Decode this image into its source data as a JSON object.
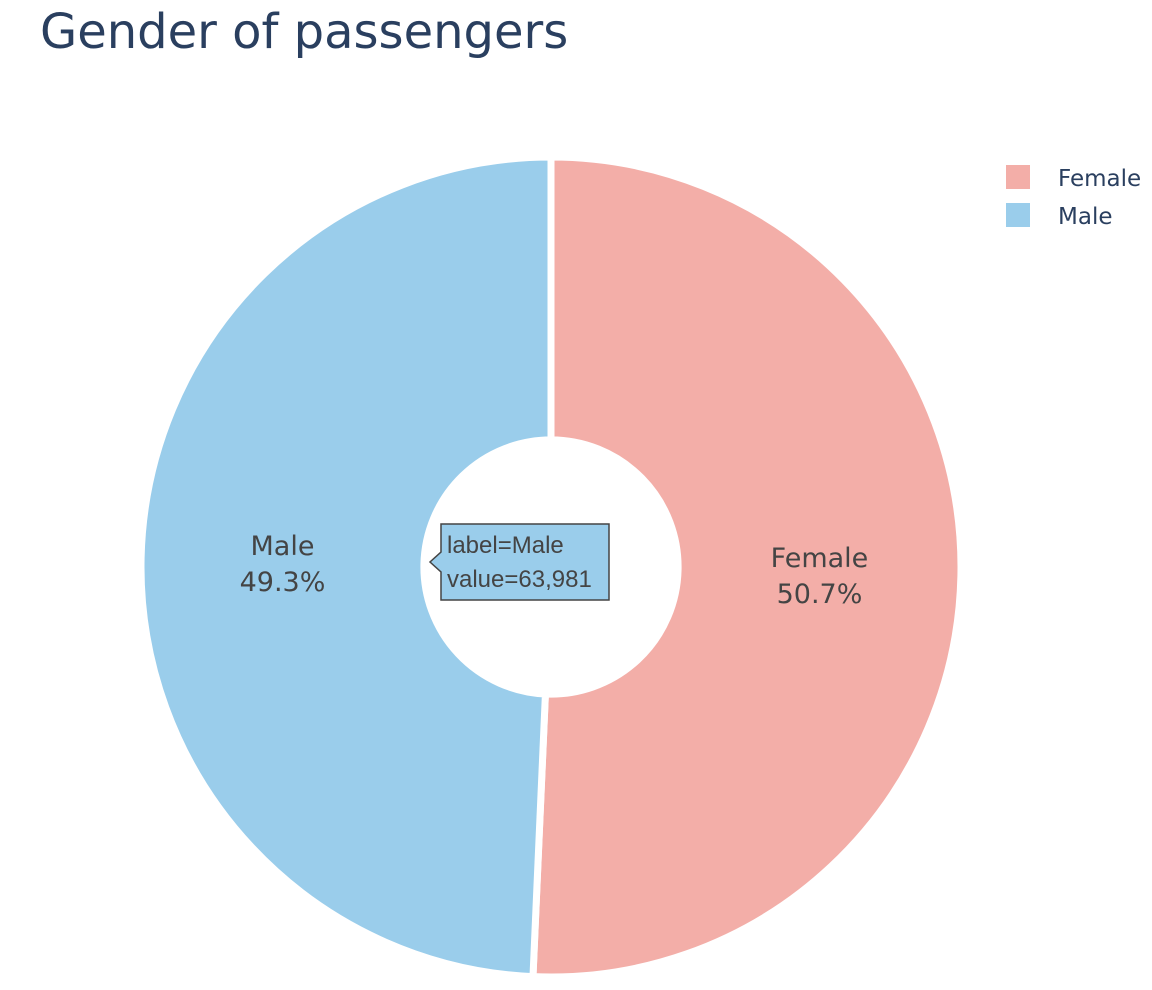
{
  "chart_data": {
    "type": "pie",
    "hole": 0.31,
    "title": "Gender of passengers",
    "slices": [
      {
        "label": "Female",
        "percent": "50.7%",
        "fraction": 0.507,
        "color": "#f3aea8"
      },
      {
        "label": "Male",
        "percent": "49.3%",
        "fraction": 0.493,
        "color": "#9acdeb"
      }
    ],
    "legend": {
      "position": "top-right",
      "entries": [
        "Female",
        "Male"
      ]
    },
    "hover_tooltip": {
      "line1": "label=Male",
      "line2": "value=63,981"
    }
  }
}
